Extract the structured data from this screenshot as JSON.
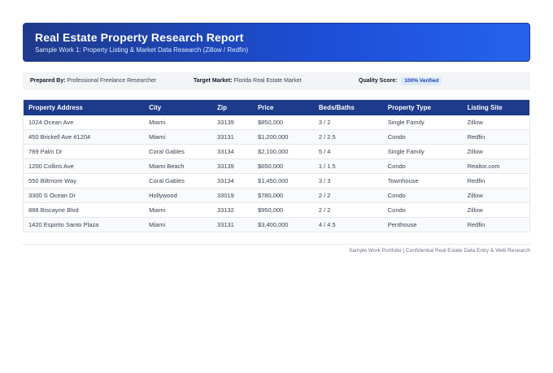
{
  "header": {
    "title": "Real Estate Property Research Report",
    "subtitle": "Sample Work 1: Property Listing & Market Data Research (Zillow / Redfin)"
  },
  "meta": {
    "prepared_by_label": "Prepared By:",
    "prepared_by_value": "Professional Freelance Researcher",
    "target_market_label": "Target Market:",
    "target_market_value": "Florida Real Estate Market",
    "quality_label": "Quality Score:",
    "quality_value": "100% Verified"
  },
  "table": {
    "headers": [
      "Property Address",
      "City",
      "Zip",
      "Price",
      "Beds/Baths",
      "Property Type",
      "Listing Site"
    ],
    "rows": [
      [
        "1024 Ocean Ave",
        "Miami",
        "33139",
        "$850,000",
        "3 / 2",
        "Single Family",
        "Zillow"
      ],
      [
        "450 Brickell Ave #1204",
        "Miami",
        "33131",
        "$1,200,000",
        "2 / 2.5",
        "Condo",
        "Redfin"
      ],
      [
        "789 Palm Dr",
        "Coral Gables",
        "33134",
        "$2,100,000",
        "5 / 4",
        "Single Family",
        "Zillow"
      ],
      [
        "1200 Collins Ave",
        "Miami Beach",
        "33139",
        "$650,000",
        "1 / 1.5",
        "Condo",
        "Realtor.com"
      ],
      [
        "550 Biltmore Way",
        "Coral Gables",
        "33134",
        "$1,450,000",
        "3 / 3",
        "Townhouse",
        "Redfin"
      ],
      [
        "3300 S Ocean Dr",
        "Hollywood",
        "33019",
        "$780,000",
        "2 / 2",
        "Condo",
        "Zillow"
      ],
      [
        "888 Biscayne Blvd",
        "Miami",
        "33132",
        "$950,000",
        "2 / 2",
        "Condo",
        "Zillow"
      ],
      [
        "1420 Espirito Santo Plaza",
        "Miami",
        "33131",
        "$3,400,000",
        "4 / 4.5",
        "Penthouse",
        "Redfin"
      ]
    ]
  },
  "footer": {
    "text": "Sample Work Portfolio | Confidential Real Estate Data Entry & Web Research"
  },
  "colors": {
    "header_gradient_start": "#1e3a8a",
    "header_gradient_end": "#2563eb",
    "table_header": "#1e3a8a",
    "badge_bg": "#dbeafe",
    "badge_text": "#1e40af"
  }
}
